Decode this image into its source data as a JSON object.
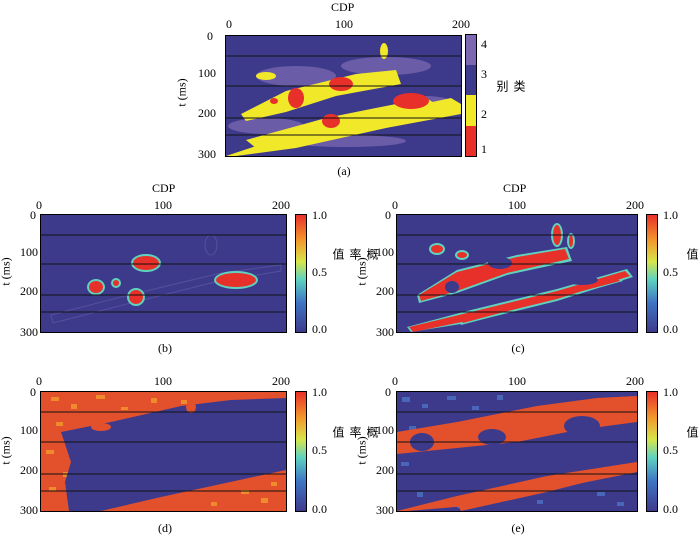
{
  "chart_data": [
    {
      "id": "a",
      "type": "heatmap",
      "caption": "(a)",
      "xlabel": "CDP",
      "ylabel": "t (ms)",
      "xticks": [
        "0",
        "100",
        "200"
      ],
      "yticks": [
        "0",
        "100",
        "200",
        "300"
      ],
      "xlim": [
        0,
        200
      ],
      "ylim": [
        0,
        300
      ],
      "colorbar": {
        "title": "类别",
        "ticks": [
          "4",
          "3",
          "2",
          "1"
        ],
        "categories": [
          {
            "value": 4,
            "color": "#7b68b0"
          },
          {
            "value": 3,
            "color": "#3d3a8c"
          },
          {
            "value": 2,
            "color": "#f2e82a"
          },
          {
            "value": 1,
            "color": "#e8302a"
          }
        ]
      },
      "background_color": "#3d3a8c",
      "horizon_lines_ms": [
        50,
        125,
        205,
        248
      ]
    },
    {
      "id": "b",
      "type": "heatmap",
      "caption": "(b)",
      "xlabel": "CDP",
      "ylabel": "t (ms)",
      "xticks": [
        "0",
        "100",
        "200"
      ],
      "yticks": [
        "0",
        "100",
        "200",
        "300"
      ],
      "xlim": [
        0,
        200
      ],
      "ylim": [
        0,
        300
      ],
      "colorbar": {
        "title": "概率值",
        "ticks": [
          "1.0",
          "0.5",
          "0.0"
        ],
        "range": [
          0,
          1
        ]
      },
      "background_color": "#3d3a8c",
      "horizon_lines_ms": [
        50,
        125,
        205,
        248
      ]
    },
    {
      "id": "c",
      "type": "heatmap",
      "caption": "(c)",
      "xlabel": "CDP",
      "ylabel": "t (ms)",
      "xticks": [
        "0",
        "100",
        "200"
      ],
      "yticks": [
        "0",
        "100",
        "200",
        "300"
      ],
      "xlim": [
        0,
        200
      ],
      "ylim": [
        0,
        300
      ],
      "colorbar": {
        "title": "概率值",
        "ticks": [
          "1.0",
          "0.5",
          "0.0"
        ],
        "range": [
          0,
          1
        ]
      },
      "background_color": "#3d3a8c",
      "horizon_lines_ms": [
        50,
        125,
        205,
        248
      ]
    },
    {
      "id": "d",
      "type": "heatmap",
      "caption": "(d)",
      "xlabel": "",
      "ylabel": "t (ms)",
      "xticks": [
        "0",
        "100",
        "200"
      ],
      "yticks": [
        "0",
        "100",
        "200",
        "300"
      ],
      "xlim": [
        0,
        200
      ],
      "ylim": [
        0,
        300
      ],
      "colorbar": {
        "title": "概率值",
        "ticks": [
          "1.0",
          "0.5",
          "0.0"
        ],
        "range": [
          0,
          1
        ]
      },
      "background_color": "#e2512c",
      "horizon_lines_ms": [
        50,
        125,
        205,
        248
      ]
    },
    {
      "id": "e",
      "type": "heatmap",
      "caption": "(e)",
      "xlabel": "",
      "ylabel": "t (ms)",
      "xticks": [
        "0",
        "100",
        "200"
      ],
      "yticks": [
        "0",
        "100",
        "200",
        "300"
      ],
      "xlim": [
        0,
        200
      ],
      "ylim": [
        0,
        300
      ],
      "colorbar": {
        "title": "概率值",
        "ticks": [
          "1.0",
          "0.5",
          "0.0"
        ],
        "range": [
          0,
          1
        ]
      },
      "background_color": "#3d3a8c",
      "horizon_lines_ms": [
        50,
        125,
        205,
        248
      ]
    }
  ]
}
